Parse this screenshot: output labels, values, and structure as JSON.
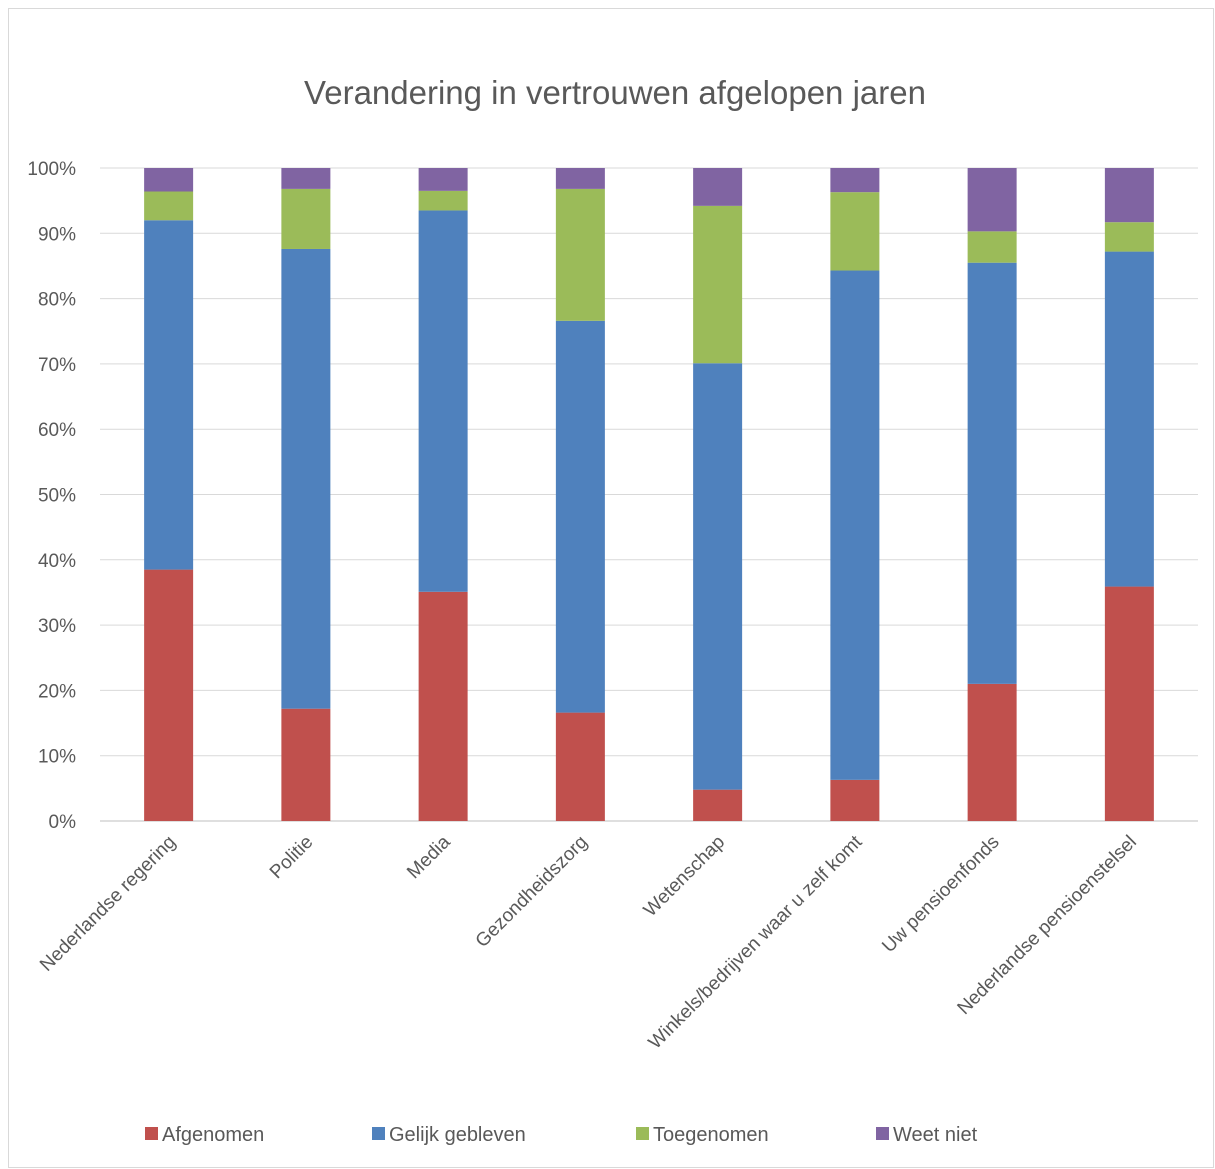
{
  "chart_data": {
    "type": "bar",
    "stacked": true,
    "title": "Verandering in vertrouwen afgelopen jaren",
    "xlabel": "",
    "ylabel": "",
    "ylim": [
      0,
      100
    ],
    "y_ticks": [
      "0%",
      "10%",
      "20%",
      "30%",
      "40%",
      "50%",
      "60%",
      "70%",
      "80%",
      "90%",
      "100%"
    ],
    "grid": true,
    "legend_position": "bottom",
    "categories": [
      "Nederlandse regering",
      "Politie",
      "Media",
      "Gezondheidszorg",
      "Wetenschap",
      "Winkels/bedrijven waar u zelf komt",
      "Uw pensioenfonds",
      "Nederlandse pensioenstelsel"
    ],
    "series": [
      {
        "name": "Afgenomen",
        "color": "#c0504d",
        "values": [
          38.5,
          17.2,
          35.1,
          16.6,
          4.8,
          6.3,
          21.0,
          35.9
        ]
      },
      {
        "name": "Gelijk gebleven",
        "color": "#4f81bd",
        "values": [
          53.5,
          70.4,
          58.4,
          60.0,
          65.3,
          78.0,
          64.5,
          51.3
        ]
      },
      {
        "name": "Toegenomen",
        "color": "#9bbb59",
        "values": [
          4.4,
          9.2,
          3.0,
          20.2,
          24.1,
          12.0,
          4.8,
          4.5
        ]
      },
      {
        "name": "Weet niet",
        "color": "#8064a2",
        "values": [
          3.6,
          3.2,
          3.5,
          3.2,
          5.8,
          3.7,
          9.7,
          8.3
        ]
      }
    ]
  }
}
